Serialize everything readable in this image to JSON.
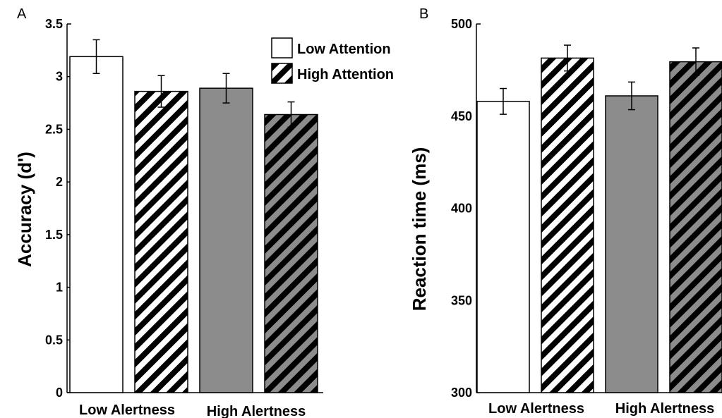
{
  "colors": {
    "outline": "#000000",
    "open_fill": "#ffffff",
    "gray_fill": "#8c8c8c",
    "stripe_dark": "#000000"
  },
  "legend": [
    {
      "label": "Low Attention",
      "pattern": "open"
    },
    {
      "label": "High Attention",
      "pattern": "hatched"
    }
  ],
  "chart_data": [
    {
      "type": "bar",
      "panel_label": "A",
      "ylabel": "Accuracy (d')",
      "ylim": [
        0,
        3.5
      ],
      "yticks": [
        "0",
        "0.5",
        "1",
        "1.5",
        "2",
        "2.5",
        "3",
        "3.5"
      ],
      "groups": [
        "Low Alertness",
        "High Alertness"
      ],
      "bars": [
        {
          "group": "Low Alertness",
          "series": "Low Attention",
          "value": 3.19,
          "error": 0.16,
          "style": "white"
        },
        {
          "group": "Low Alertness",
          "series": "High Attention",
          "value": 2.86,
          "error": 0.15,
          "style": "white-hatch"
        },
        {
          "group": "High Alertness",
          "series": "Low Attention",
          "value": 2.89,
          "error": 0.14,
          "style": "gray"
        },
        {
          "group": "High Alertness",
          "series": "High Attention",
          "value": 2.64,
          "error": 0.12,
          "style": "gray-hatch"
        }
      ]
    },
    {
      "type": "bar",
      "panel_label": "B",
      "ylabel": "Reaction time (ms)",
      "ylim": [
        300,
        500
      ],
      "yticks": [
        "300",
        "350",
        "400",
        "450",
        "500"
      ],
      "groups": [
        "Low Alertness",
        "High Alertness"
      ],
      "bars": [
        {
          "group": "Low Alertness",
          "series": "Low Attention",
          "value": 458,
          "error": 7,
          "style": "white"
        },
        {
          "group": "Low Alertness",
          "series": "High Attention",
          "value": 481.5,
          "error": 7,
          "style": "white-hatch"
        },
        {
          "group": "High Alertness",
          "series": "Low Attention",
          "value": 461,
          "error": 7.5,
          "style": "gray"
        },
        {
          "group": "High Alertness",
          "series": "High Attention",
          "value": 479.5,
          "error": 7.5,
          "style": "gray-hatch"
        }
      ]
    }
  ]
}
